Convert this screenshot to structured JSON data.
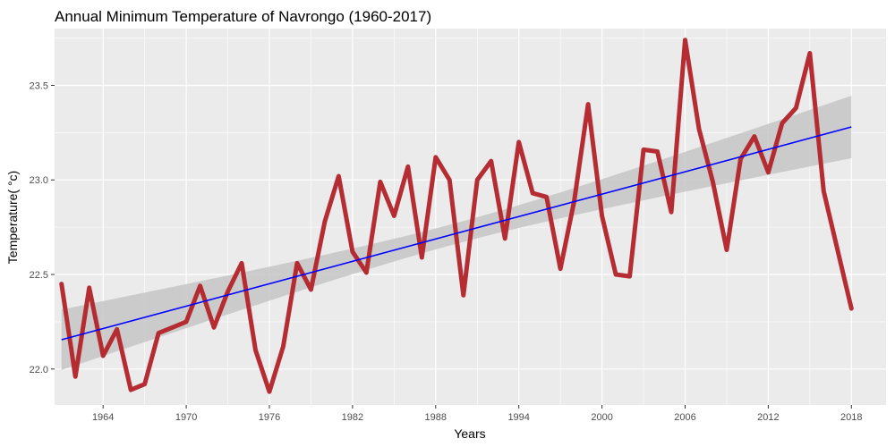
{
  "chart_data": {
    "type": "line",
    "title": "Annual Minimum Temperature  of Navrongo (1960-2017)",
    "xlabel": "Years",
    "ylabel": "Temperature( °c)",
    "xlim": [
      1960.5,
      2020.5
    ],
    "ylim": [
      21.81,
      23.8
    ],
    "x_ticks": [
      1964,
      1970,
      1976,
      1982,
      1988,
      1994,
      2000,
      2006,
      2012,
      2018
    ],
    "y_ticks": [
      22.0,
      22.5,
      23.0,
      23.5
    ],
    "y_tick_labels": [
      "22.0",
      "22.5",
      "23.0",
      "23.5"
    ],
    "grid": true,
    "legend": "none",
    "series": [
      {
        "color": "#b22228",
        "x": [
          1961,
          1962,
          1963,
          1964,
          1965,
          1966,
          1967,
          1968,
          1969,
          1970,
          1971,
          1972,
          1973,
          1974,
          1975,
          1976,
          1977,
          1978,
          1979,
          1980,
          1981,
          1982,
          1983,
          1984,
          1985,
          1986,
          1987,
          1988,
          1989,
          1990,
          1991,
          1992,
          1993,
          1994,
          1995,
          1996,
          1997,
          1998,
          1999,
          2000,
          2001,
          2002,
          2003,
          2004,
          2005,
          2006,
          2007,
          2008,
          2009,
          2010,
          2011,
          2012,
          2013,
          2014,
          2015,
          2016,
          2017,
          2018
        ],
        "y": [
          22.45,
          21.96,
          22.43,
          22.07,
          22.21,
          21.89,
          21.92,
          22.19,
          22.22,
          22.25,
          22.44,
          22.22,
          22.41,
          22.56,
          22.1,
          21.88,
          22.12,
          22.56,
          22.42,
          22.78,
          23.02,
          22.62,
          22.51,
          22.99,
          22.81,
          23.07,
          22.59,
          23.12,
          23.0,
          22.39,
          23.0,
          23.1,
          22.69,
          23.2,
          22.93,
          22.91,
          22.53,
          22.89,
          23.4,
          22.81,
          22.5,
          22.49,
          23.16,
          23.15,
          22.83,
          23.74,
          23.27,
          22.99,
          22.63,
          23.11,
          23.23,
          23.04,
          23.3,
          23.38,
          23.67,
          22.94,
          22.63,
          22.32
        ]
      }
    ],
    "trend": {
      "type": "linear",
      "color": "#0000ff",
      "ribbon_color": "#c6c6c6",
      "x_range": [
        1961,
        2018
      ],
      "y_at_start": 22.155,
      "y_at_end": 23.28,
      "ci_half_width_at_start": 0.16,
      "ci_half_width_at_end": 0.165,
      "ci_half_width_at_mean": 0.055
    },
    "panel_background": "#ebebeb",
    "grid_color": "#ffffff"
  }
}
